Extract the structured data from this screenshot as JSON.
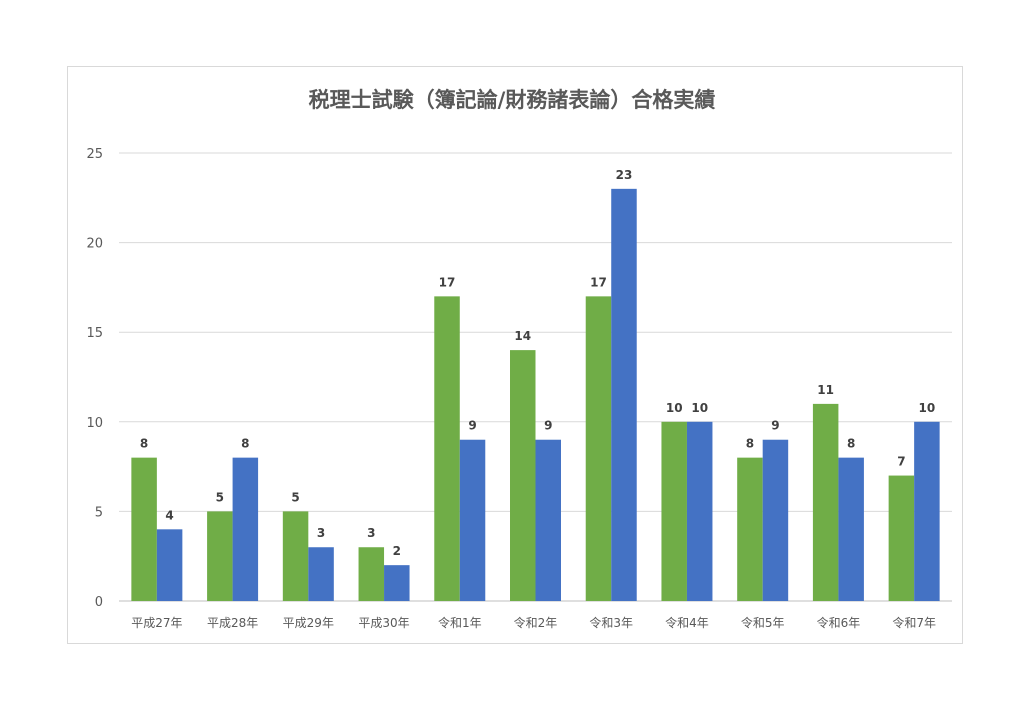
{
  "chart_data": {
    "type": "bar",
    "title": "税理士試験（簿記論/財務諸表論）合格実績",
    "categories": [
      "平成27年",
      "平成28年",
      "平成29年",
      "平成30年",
      "令和1年",
      "令和2年",
      "令和3年",
      "令和4年",
      "令和5年",
      "令和6年",
      "令和7年"
    ],
    "series": [
      {
        "values": [
          8,
          5,
          5,
          3,
          17,
          14,
          17,
          10,
          8,
          11,
          7
        ],
        "color": "#70ad47"
      },
      {
        "values": [
          4,
          8,
          3,
          2,
          9,
          9,
          23,
          10,
          9,
          8,
          10
        ],
        "color": "#4472c4"
      }
    ],
    "ylim": [
      0,
      25
    ],
    "yticks": [
      0,
      5,
      10,
      15,
      20,
      25
    ],
    "grid": true,
    "legend": "none"
  }
}
